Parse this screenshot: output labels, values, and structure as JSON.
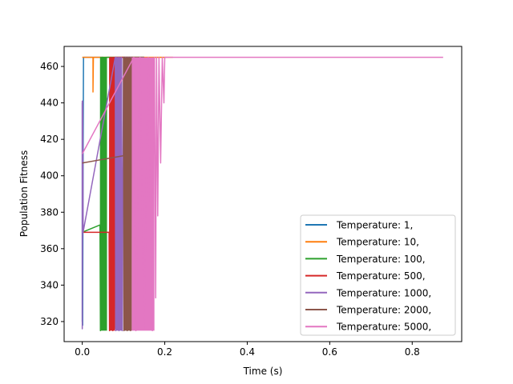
{
  "chart_data": {
    "type": "line",
    "title": "",
    "xlabel": "Time (s)",
    "ylabel": "Population Fitness",
    "xlim": [
      -0.044,
      0.92
    ],
    "ylim": [
      309,
      471
    ],
    "xticks": [
      0.0,
      0.2,
      0.4,
      0.6,
      0.8
    ],
    "xtick_labels": [
      "0.0",
      "0.2",
      "0.4",
      "0.6",
      "0.8"
    ],
    "yticks": [
      320,
      340,
      360,
      380,
      400,
      420,
      440,
      460
    ],
    "ytick_labels": [
      "320",
      "340",
      "360",
      "380",
      "400",
      "420",
      "440",
      "460"
    ],
    "grid": false,
    "legend_position": "lower-right",
    "series": [
      {
        "name": "Temperature: 1,",
        "color": "#1f77b4",
        "x": [
          0.0,
          0.0,
          0.0,
          0.0,
          0.001,
          0.001,
          0.002,
          0.003,
          0.004,
          0.005,
          0.01,
          0.02,
          0.03,
          0.05
        ],
        "y": [
          440,
          320,
          430,
          335,
          425,
          318,
          410,
          465,
          465,
          465,
          465,
          465,
          465,
          465
        ]
      },
      {
        "name": "Temperature: 10,",
        "color": "#ff7f0e",
        "x": [
          0.0,
          0.001,
          0.002,
          0.003,
          0.01,
          0.02,
          0.026,
          0.026,
          0.027,
          0.03,
          0.06,
          0.1,
          0.15,
          0.22
        ],
        "y": [
          465,
          465,
          465,
          465,
          465,
          465,
          465,
          446,
          465,
          465,
          465,
          465,
          465,
          465
        ]
      },
      {
        "name": "Temperature: 100,",
        "color": "#2ca02c",
        "x": [
          0.0,
          0.043,
          0.044,
          0.045,
          0.046,
          0.047,
          0.048,
          0.049,
          0.05,
          0.051,
          0.052,
          0.053,
          0.054,
          0.055,
          0.056,
          0.057,
          0.058,
          0.059,
          0.06,
          0.1,
          0.15
        ],
        "y": [
          369,
          373,
          315,
          465,
          440,
          355,
          465,
          372,
          465,
          352,
          465,
          440,
          465,
          356,
          465,
          375,
          465,
          465,
          465,
          465,
          465
        ],
        "bands": [
          {
            "x0": 0.043,
            "x1": 0.06,
            "y0": 315,
            "y1": 465
          }
        ]
      },
      {
        "name": "Temperature: 500,",
        "color": "#d62728",
        "x": [
          0.0,
          0.04,
          0.065,
          0.066,
          0.068,
          0.07,
          0.072,
          0.074,
          0.076,
          0.078,
          0.079,
          0.082,
          0.09,
          0.12
        ],
        "y": [
          369,
          369,
          369,
          315,
          465,
          316,
          465,
          315,
          465,
          316,
          465,
          465,
          465,
          465
        ],
        "bands": [
          {
            "x0": 0.065,
            "x1": 0.079,
            "y0": 315,
            "y1": 465
          }
        ]
      },
      {
        "name": "Temperature: 1000,",
        "color": "#9467bd",
        "x": [
          0.0,
          0.0,
          0.0,
          0.001,
          0.002,
          0.08,
          0.081,
          0.083,
          0.085,
          0.087,
          0.089,
          0.091,
          0.093,
          0.095,
          0.097,
          0.1,
          0.12
        ],
        "y": [
          369,
          441,
          316,
          441,
          369,
          465,
          315,
          465,
          316,
          465,
          315,
          465,
          316,
          465,
          315,
          465,
          465
        ],
        "bands": [
          {
            "x0": 0.08,
            "x1": 0.097,
            "y0": 315,
            "y1": 465
          }
        ]
      },
      {
        "name": "Temperature: 2000,",
        "color": "#8c564b",
        "x": [
          0.0,
          0.05,
          0.1,
          0.1,
          0.101,
          0.103,
          0.105,
          0.107,
          0.109,
          0.111,
          0.113,
          0.115,
          0.117,
          0.12,
          0.15
        ],
        "y": [
          407,
          409,
          411,
          465,
          315,
          465,
          316,
          465,
          315,
          465,
          316,
          465,
          315,
          465,
          465
        ],
        "bands": [
          {
            "x0": 0.1,
            "x1": 0.12,
            "y0": 315,
            "y1": 465
          }
        ]
      },
      {
        "name": "Temperature: 5000,",
        "color": "#e377c2",
        "x": [
          0.0,
          0.125,
          0.13,
          0.14,
          0.15,
          0.16,
          0.17,
          0.175,
          0.178,
          0.18,
          0.183,
          0.186,
          0.19,
          0.194,
          0.198,
          0.2,
          0.21,
          0.3,
          0.5,
          0.7,
          0.875
        ],
        "y": [
          412,
          465,
          315,
          465,
          316,
          465,
          315,
          465,
          333,
          465,
          378,
          465,
          407,
          465,
          440,
          465,
          465,
          465,
          465,
          465,
          465
        ],
        "bands": [
          {
            "x0": 0.12,
            "x1": 0.175,
            "y0": 315,
            "y1": 465
          }
        ]
      }
    ]
  }
}
